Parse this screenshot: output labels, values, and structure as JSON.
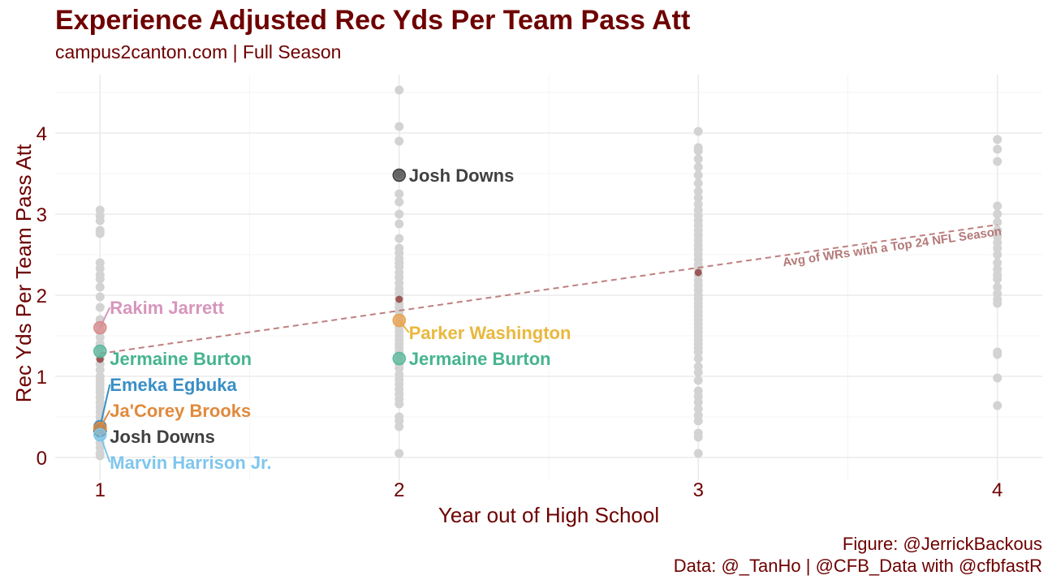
{
  "chart_data": {
    "type": "scatter",
    "title": "Experience Adjusted Rec Yds Per Team Pass Att",
    "subtitle": "campus2canton.com | Full Season",
    "xlabel": "Year out of High School",
    "ylabel": "Rec Yds Per Team Pass Att",
    "x_ticks": [
      "1",
      "2",
      "3",
      "4"
    ],
    "y_ticks": [
      "0",
      "1",
      "2",
      "3",
      "4"
    ],
    "xlim": [
      0.85,
      4.15
    ],
    "ylim": [
      -0.28,
      4.72
    ],
    "grid": true,
    "caption_lines": [
      "Figure: @JerrickBackous",
      "Data: @_TanHo | @CFB_Data with @cfbfastR"
    ],
    "colors": {
      "text": "#6e0000",
      "grid": "#ebebeb",
      "background_points": "#d3d3d3",
      "average": "#8b2e2e",
      "average_line": "#c08080"
    },
    "background_points": [
      {
        "x": 1,
        "ys": [
          3.05,
          2.98,
          2.92,
          2.8,
          2.76,
          2.4,
          2.33,
          2.25,
          2.2,
          2.1,
          1.98,
          1.85,
          1.7,
          1.62,
          1.55,
          1.48,
          1.4,
          1.35,
          1.28,
          1.22,
          1.15,
          1.08,
          1.0,
          0.95,
          0.9,
          0.85,
          0.8,
          0.74,
          0.68,
          0.62,
          0.56,
          0.5,
          0.45,
          0.4,
          0.36,
          0.3,
          0.25,
          0.18,
          0.12,
          0.05,
          0.02
        ]
      },
      {
        "x": 2,
        "ys": [
          4.53,
          4.08,
          3.9,
          3.5,
          3.25,
          3.15,
          3.0,
          2.88,
          2.7,
          2.58,
          2.52,
          2.45,
          2.4,
          2.35,
          2.28,
          2.22,
          2.15,
          2.08,
          2.02,
          1.96,
          1.9,
          1.85,
          1.8,
          1.75,
          1.68,
          1.6,
          1.55,
          1.5,
          1.45,
          1.4,
          1.35,
          1.3,
          1.22,
          1.15,
          1.1,
          1.02,
          0.96,
          0.9,
          0.84,
          0.78,
          0.72,
          0.66,
          0.5,
          0.45,
          0.38,
          0.05
        ]
      },
      {
        "x": 3,
        "ys": [
          4.02,
          3.82,
          3.78,
          3.68,
          3.58,
          3.48,
          3.38,
          3.28,
          3.2,
          3.12,
          3.05,
          2.98,
          2.92,
          2.86,
          2.8,
          2.74,
          2.68,
          2.62,
          2.56,
          2.5,
          2.44,
          2.38,
          2.33,
          2.25,
          2.18,
          2.12,
          2.06,
          2.0,
          1.95,
          1.9,
          1.85,
          1.8,
          1.75,
          1.7,
          1.65,
          1.6,
          1.55,
          1.5,
          1.45,
          1.4,
          1.35,
          1.3,
          1.22,
          1.12,
          1.05,
          0.95,
          0.82,
          0.75,
          0.68,
          0.6,
          0.52,
          0.45,
          0.3,
          0.25,
          0.05
        ]
      },
      {
        "x": 4,
        "ys": [
          3.92,
          3.8,
          3.65,
          3.1,
          3.0,
          2.9,
          2.8,
          2.72,
          2.65,
          2.58,
          2.5,
          2.4,
          2.32,
          2.25,
          2.2,
          2.1,
          2.02,
          1.95,
          1.9,
          1.3,
          1.27,
          0.98,
          0.64
        ]
      }
    ],
    "average_series": {
      "name": "Avg of WRs with a Top 24 NFL Season",
      "points": [
        {
          "x": 1,
          "y": 1.21
        },
        {
          "x": 2,
          "y": 1.95
        },
        {
          "x": 3,
          "y": 2.28
        }
      ],
      "trend": [
        {
          "x": 1,
          "y": 1.28
        },
        {
          "x": 4,
          "y": 2.87
        }
      ]
    },
    "highlighted": [
      {
        "name": "Josh Downs",
        "color": "#404040",
        "points": [
          {
            "x": 1,
            "y": 0.33
          },
          {
            "x": 2,
            "y": 3.48
          }
        ],
        "label_y": [
          0.26,
          3.48
        ]
      },
      {
        "name": "Rakim Jarrett",
        "color": "#d98a8a",
        "label_color": "#d796bc",
        "points": [
          {
            "x": 1,
            "y": 1.6
          }
        ],
        "label_y": [
          1.85,
          1.85
        ]
      },
      {
        "name": "Parker Washington",
        "color": "#e8a14c",
        "label_color": "#e9b83e",
        "points": [
          {
            "x": 2,
            "y": 1.69
          }
        ],
        "label_y": [
          1.54,
          1.54
        ]
      },
      {
        "name": "Jermaine Burton",
        "color": "#58b89b",
        "label_color": "#45b48f",
        "points": [
          {
            "x": 1,
            "y": 1.31
          },
          {
            "x": 2,
            "y": 1.22
          }
        ],
        "label_y": [
          1.22,
          1.22
        ]
      },
      {
        "name": "Emeka Egbuka",
        "color": "#3a8fc6",
        "label_color": "#3a8fc6",
        "points": [
          {
            "x": 1,
            "y": 0.38
          }
        ],
        "label_y": [
          0.9
        ]
      },
      {
        "name": "Ja'Corey Brooks",
        "color": "#e08a3c",
        "label_color": "#e08a3c",
        "points": [
          {
            "x": 1,
            "y": 0.36
          }
        ],
        "label_y": [
          0.58
        ]
      },
      {
        "name": "Marvin Harrison Jr.",
        "color": "#7fc6ec",
        "label_color": "#7fc6ec",
        "points": [
          {
            "x": 1,
            "y": 0.28
          }
        ],
        "label_y": [
          -0.06
        ]
      }
    ]
  }
}
